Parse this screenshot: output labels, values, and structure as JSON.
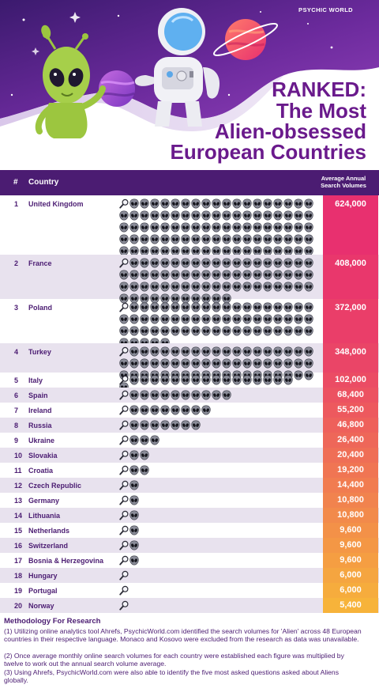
{
  "brand": "PSYCHIC WORLD",
  "title_line1": "RANKED:",
  "title_line2": "The Most",
  "title_line3": "Alien-obsessed",
  "title_line4": "European Countries",
  "header": {
    "rank": "#",
    "country": "Country",
    "volume_line1": "Average Annual",
    "volume_line2": "Search Volumes"
  },
  "icon_names": [
    "magnifying-glass-icon",
    "alien-head-icon"
  ],
  "colors": {
    "header_purple": "#4b1c72",
    "title_purple": "#6a1a8c",
    "alien_green": "#a6cf4a",
    "top_value": "#e8306f",
    "bottom_value": "#f7b33a"
  },
  "chart_data": {
    "type": "table",
    "columns": [
      "#",
      "Country",
      "Average Annual Search Volumes"
    ],
    "rows": [
      {
        "rank": "1",
        "country": "United Kingdom",
        "value": 624000,
        "label": "624,000"
      },
      {
        "rank": "2",
        "country": "France",
        "value": 408000,
        "label": "408,000"
      },
      {
        "rank": "3",
        "country": "Poland",
        "value": 372000,
        "label": "372,000"
      },
      {
        "rank": "4",
        "country": "Turkey",
        "value": 348000,
        "label": "348,000"
      },
      {
        "rank": "5",
        "country": "Italy",
        "value": 102000,
        "label": "102,000"
      },
      {
        "rank": "6",
        "country": "Spain",
        "value": 68400,
        "label": "68,400"
      },
      {
        "rank": "7",
        "country": "Ireland",
        "value": 55200,
        "label": "55,200"
      },
      {
        "rank": "8",
        "country": "Russia",
        "value": 46800,
        "label": "46,800"
      },
      {
        "rank": "9",
        "country": "Ukraine",
        "value": 26400,
        "label": "26,400"
      },
      {
        "rank": "10",
        "country": "Slovakia",
        "value": 20400,
        "label": "20,400"
      },
      {
        "rank": "11",
        "country": "Croatia",
        "value": 19200,
        "label": "19,200"
      },
      {
        "rank": "12",
        "country": "Czech Republic",
        "value": 14400,
        "label": "14,400"
      },
      {
        "rank": "13",
        "country": "Germany",
        "value": 10800,
        "label": "10,800"
      },
      {
        "rank": "14",
        "country": "Lithuania",
        "value": 10800,
        "label": "10,800"
      },
      {
        "rank": "15",
        "country": "Netherlands",
        "value": 9600,
        "label": "9,600"
      },
      {
        "rank": "16",
        "country": "Switzerland",
        "value": 9600,
        "label": "9,600"
      },
      {
        "rank": "17",
        "country": "Bosnia & Herzegovina",
        "value": 9600,
        "label": "9,600"
      },
      {
        "rank": "18",
        "country": "Hungary",
        "value": 6000,
        "label": "6,000"
      },
      {
        "rank": "19",
        "country": "Portugal",
        "value": 6000,
        "label": "6,000"
      },
      {
        "rank": "20",
        "country": "Norway",
        "value": 5400,
        "label": "5,400"
      }
    ]
  },
  "methodology": {
    "title": "Methodology For Research",
    "p1": "(1) Utilizing online analytics tool Ahrefs, PsychicWorld.com identified the search volumes for 'Alien' across 48 European countries in their respective language. Monaco and Kosovo were excluded from the research as data was unavailable.",
    "p2": "(2) Once average monthly online search volumes for each country were established each figure was multiplied by twelve to work out the annual search volume average.",
    "p3": "(3) Using Ahrefs, PsychicWorld.com were also able to identify the five most asked questions asked about Aliens globally."
  }
}
